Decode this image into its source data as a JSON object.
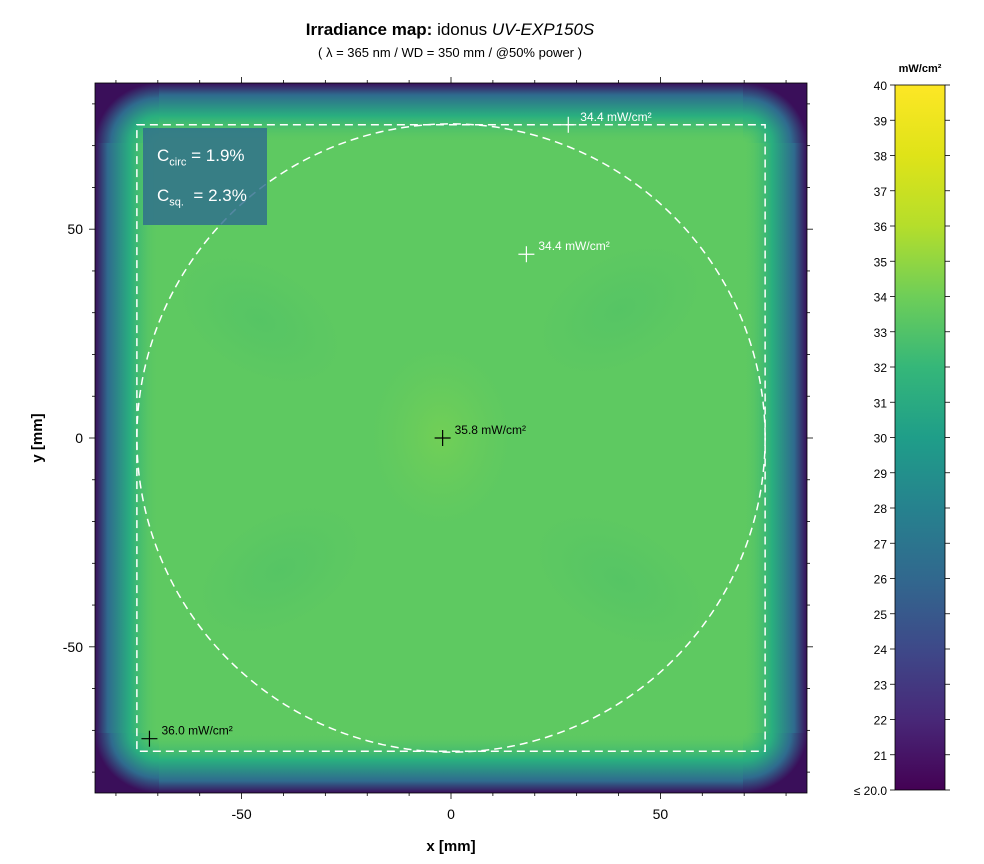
{
  "title": {
    "bold": "Irradiance map:",
    "normal": " idonus ",
    "italic": "UV-EXP150S"
  },
  "subtitle": "( λ = 365 nm / WD = 350 mm / @50% power )",
  "metrics": {
    "circ_label": "C",
    "circ_sub": "circ",
    "circ_value": " = 1.9%",
    "sq_label": "C",
    "sq_sub": "sq.",
    "sq_value": "  = 2.3%"
  },
  "chart_data": {
    "type": "heatmap",
    "xlabel": "x [mm]",
    "ylabel": "y [mm]",
    "xlim": [
      -85,
      85
    ],
    "ylim": [
      -85,
      85
    ],
    "xticks": [
      -50,
      0,
      50
    ],
    "yticks": [
      -50,
      0,
      50
    ],
    "colorbar": {
      "label": "mW/cm²",
      "min": 20,
      "max": 40,
      "ticks": [
        "≤ 20.0",
        "21",
        "22",
        "23",
        "24",
        "25",
        "26",
        "27",
        "28",
        "29",
        "30",
        "31",
        "32",
        "33",
        "34",
        "35",
        "36",
        "37",
        "38",
        "39",
        "40"
      ],
      "colormap": "viridis"
    },
    "field_value_range": [
      33.5,
      36.0
    ],
    "inspection_square_half_width_mm": 75,
    "inspection_circle_radius_mm": 75,
    "points": [
      {
        "x": -2,
        "y": 0,
        "label": "35.8 mW/cm²",
        "color": "#000000"
      },
      {
        "x": 18,
        "y": 44,
        "label": "34.4 mW/cm²",
        "color": "#ffffff"
      },
      {
        "x": 28,
        "y": 75,
        "label": "34.4 mW/cm²",
        "color": "#ffffff"
      },
      {
        "x": -72,
        "y": -72,
        "label": "36.0 mW/cm²",
        "color": "#000000"
      }
    ]
  }
}
